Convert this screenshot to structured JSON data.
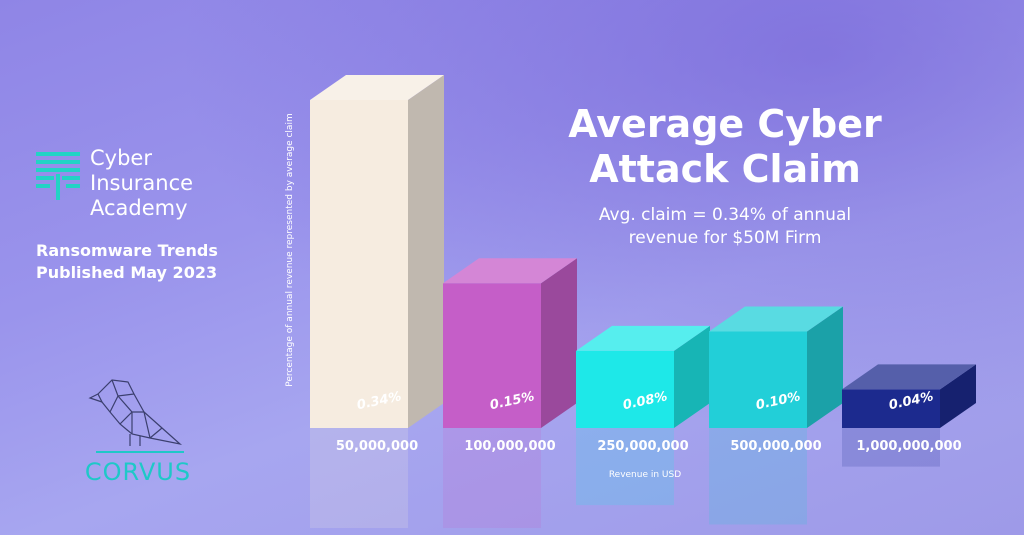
{
  "brand": {
    "name": "Cyber\nInsurance\nAcademy",
    "subtitle": "Ransomware Trends Published May 2023",
    "partner": "CORVUS",
    "mark_icon": "cyber-insurance-academy-logo-icon",
    "partner_icon": "raven-icon"
  },
  "heading": {
    "title": "Average Cyber\nAttack Claim",
    "caption": "Avg. claim = 0.34% of annual\nrevenue for $50M Firm"
  },
  "chart_data": {
    "type": "bar",
    "title": "Average Cyber Attack Claim",
    "xlabel": "Revenue in USD",
    "ylabel": "Percentage of annual revenue represented by average claim",
    "categories": [
      "50,000,000",
      "100,000,000",
      "250,000,000",
      "500,000,000",
      "1,000,000,000"
    ],
    "values": [
      0.34,
      0.15,
      0.08,
      0.1,
      0.04
    ],
    "value_labels": [
      "0.34%",
      "0.15%",
      "0.08%",
      "0.10%",
      "0.04%"
    ],
    "ylim": [
      0,
      0.34
    ],
    "grid": false,
    "colors": [
      "#f6ece0",
      "#c55ec8",
      "#1ee8e8",
      "#22cfd8",
      "#1c2a8e"
    ]
  }
}
